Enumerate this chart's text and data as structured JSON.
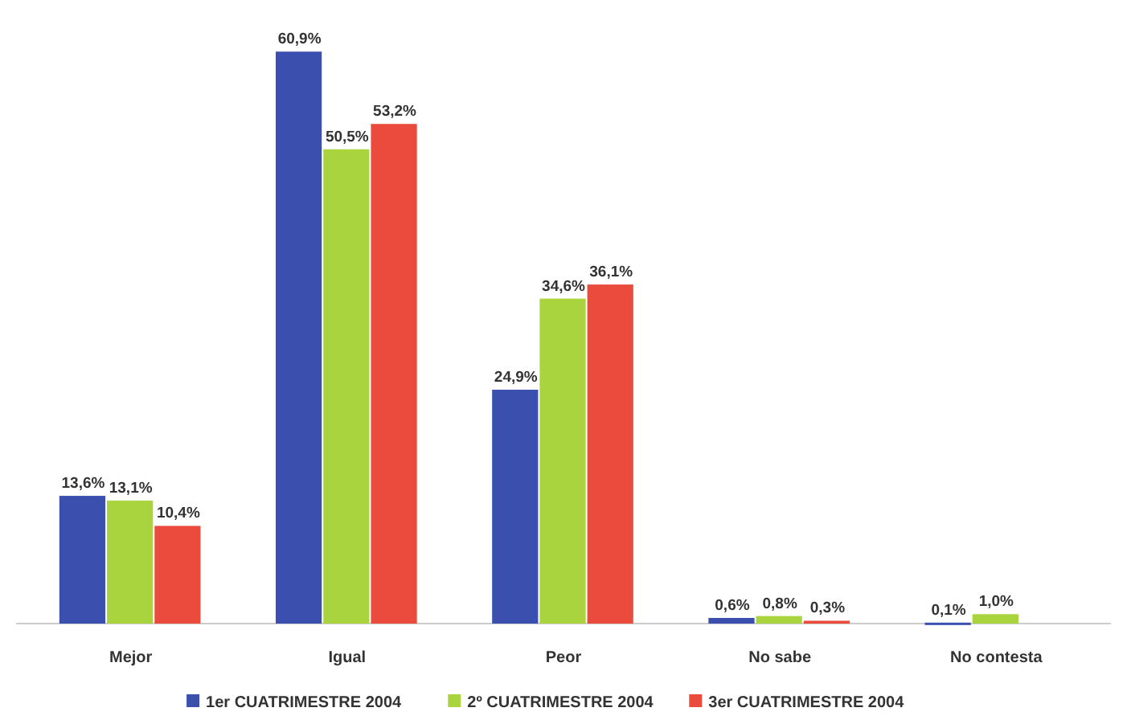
{
  "chart_data": {
    "type": "bar",
    "categories": [
      "Mejor",
      "Igual",
      "Peor",
      "No sabe",
      "No contesta"
    ],
    "series": [
      {
        "name": "1er  CUATRIMESTRE 2004",
        "color": "#3b4fae",
        "values": [
          13.6,
          60.9,
          24.9,
          0.6,
          0.1
        ],
        "value_labels": [
          "13,6%",
          "60,9%",
          "24,9%",
          "0,6%",
          "0,1%"
        ]
      },
      {
        "name": "2º CUATRIMESTRE 2004",
        "color": "#a9d43e",
        "values": [
          13.1,
          50.5,
          34.6,
          0.8,
          1.0
        ],
        "value_labels": [
          "13,1%",
          "50,5%",
          "34,6%",
          "0,8%",
          "1,0%"
        ]
      },
      {
        "name": "3er CUATRIMESTRE 2004",
        "color": "#ea4b3c",
        "values": [
          10.4,
          53.2,
          36.1,
          0.3,
          null
        ],
        "value_labels": [
          "10,4%",
          "53,2%",
          "36,1%",
          "0,3%",
          null
        ]
      }
    ],
    "relative": false,
    "legend": "bottom",
    "grid": false
  }
}
